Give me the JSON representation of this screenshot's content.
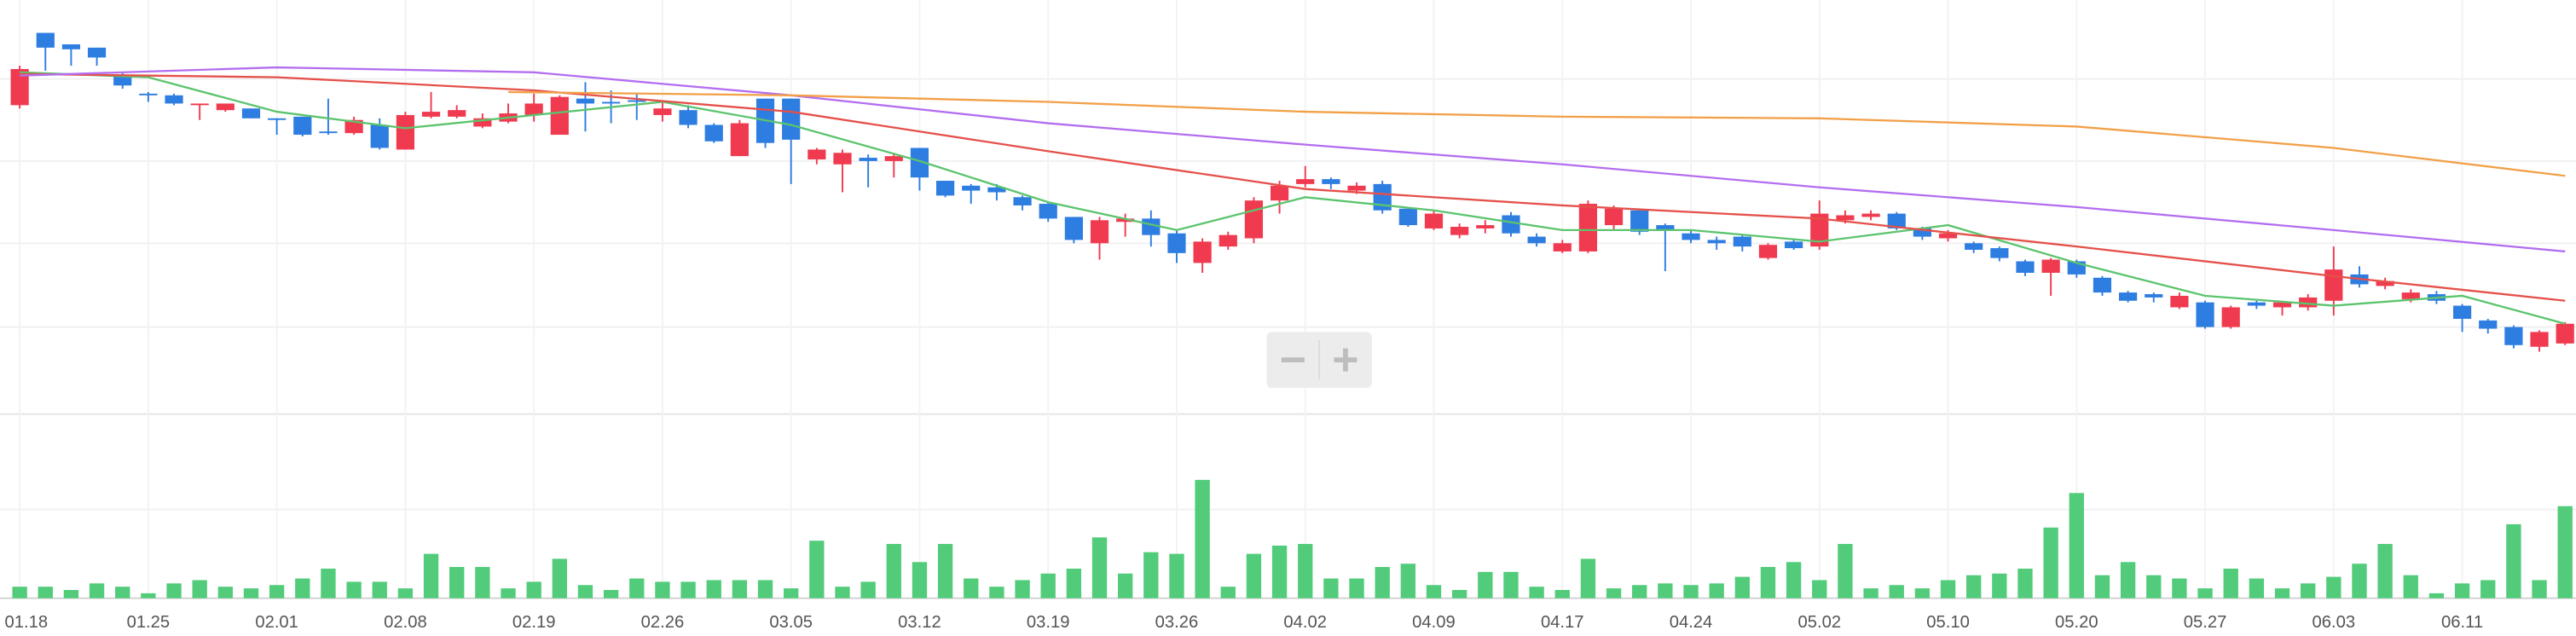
{
  "chart_data": {
    "type": "candlestick",
    "categories": [
      "01.18",
      null,
      null,
      null,
      null,
      "01.25",
      null,
      null,
      null,
      null,
      "02.01",
      null,
      null,
      null,
      null,
      "02.08",
      null,
      null,
      null,
      null,
      "02.19",
      null,
      null,
      null,
      null,
      "02.26",
      null,
      null,
      null,
      null,
      "03.05",
      null,
      null,
      null,
      null,
      "03.12",
      null,
      null,
      null,
      null,
      "03.19",
      null,
      null,
      null,
      null,
      "03.26",
      null,
      null,
      null,
      null,
      "04.02",
      null,
      null,
      null,
      null,
      "04.09",
      null,
      null,
      null,
      null,
      "04.17",
      null,
      null,
      null,
      null,
      "04.24",
      null,
      null,
      null,
      null,
      "05.02",
      null,
      null,
      null,
      null,
      "05.10",
      null,
      null,
      null,
      null,
      "05.20",
      null,
      null,
      null,
      null,
      "05.27",
      null,
      null,
      null,
      null,
      "06.03",
      null,
      null,
      null,
      null,
      "06.11",
      null,
      null,
      null,
      null
    ],
    "open": [
      236,
      280,
      273,
      271,
      254,
      243,
      242,
      236,
      233,
      234,
      228,
      229,
      220,
      219,
      224,
      209,
      229,
      229,
      223,
      226,
      230,
      218,
      240,
      238,
      239,
      230,
      233,
      224,
      205,
      240,
      240,
      203,
      200,
      204,
      202,
      210,
      190,
      187,
      186,
      180,
      176,
      168,
      152,
      165,
      167,
      158,
      140,
      150,
      155,
      178,
      188,
      191,
      184,
      188,
      173,
      161,
      157,
      161,
      169,
      156,
      147,
      147,
      163,
      172,
      163,
      158,
      154,
      156,
      143,
      153,
      150,
      166,
      168,
      170,
      161,
      155,
      152,
      149,
      141,
      134,
      141,
      131,
      122,
      121,
      113,
      116,
      101,
      116,
      113,
      113,
      117,
      133,
      126,
      118,
      121,
      114,
      105,
      101,
      89,
      91
    ],
    "close": [
      258,
      271,
      270,
      265,
      248,
      242,
      237,
      237,
      237,
      228,
      227,
      218,
      219,
      227,
      210,
      230,
      232,
      233,
      228,
      231,
      237,
      241,
      237,
      237,
      238,
      234,
      224,
      214,
      225,
      213,
      215,
      209,
      207,
      202,
      205,
      192,
      181,
      184,
      183,
      175,
      167,
      154,
      166,
      167,
      157,
      146,
      153,
      157,
      178,
      187,
      191,
      188,
      187,
      172,
      163,
      170,
      162,
      163,
      158,
      152,
      152,
      176,
      173,
      159,
      160,
      154,
      152,
      150,
      151,
      149,
      170,
      169,
      170,
      161,
      156,
      158,
      148,
      143,
      134,
      142,
      133,
      122,
      117,
      119,
      120,
      101,
      113,
      114,
      116,
      119,
      136,
      127,
      129,
      122,
      117,
      106,
      100,
      90,
      98,
      103
    ],
    "high": [
      260,
      280,
      273,
      271,
      256,
      244,
      243,
      237,
      237,
      234,
      228,
      229,
      240,
      229,
      228,
      232,
      244,
      236,
      231,
      237,
      243,
      242,
      250,
      245,
      243,
      238,
      236,
      225,
      227,
      240,
      240,
      210,
      209,
      206,
      207,
      210,
      190,
      188,
      188,
      181,
      177,
      168,
      168,
      170,
      172,
      160,
      155,
      159,
      180,
      190,
      199,
      192,
      189,
      190,
      174,
      172,
      164,
      166,
      171,
      158,
      154,
      178,
      175,
      173,
      164,
      160,
      156,
      157,
      152,
      155,
      178,
      172,
      172,
      171,
      162,
      160,
      153,
      150,
      142,
      143,
      142,
      132,
      123,
      122,
      122,
      117,
      114,
      117,
      117,
      121,
      150,
      138,
      131,
      124,
      123,
      115,
      106,
      102,
      99,
      104
    ],
    "low": [
      234,
      257,
      260,
      260,
      246,
      238,
      236,
      227,
      232,
      228,
      218,
      217,
      218,
      218,
      209,
      209,
      228,
      228,
      222,
      225,
      226,
      218,
      220,
      225,
      227,
      226,
      222,
      213,
      205,
      210,
      188,
      200,
      183,
      186,
      192,
      184,
      180,
      176,
      178,
      172,
      165,
      152,
      142,
      156,
      150,
      140,
      134,
      148,
      152,
      170,
      186,
      185,
      182,
      170,
      162,
      160,
      155,
      158,
      156,
      150,
      146,
      146,
      160,
      157,
      135,
      152,
      148,
      147,
      142,
      148,
      148,
      164,
      166,
      160,
      154,
      153,
      146,
      141,
      132,
      120,
      131,
      120,
      116,
      116,
      112,
      100,
      100,
      112,
      108,
      111,
      108,
      125,
      124,
      116,
      115,
      98,
      97,
      88,
      86,
      90
    ],
    "volume": [
      7,
      7,
      5,
      9,
      7,
      3,
      9,
      11,
      7,
      6,
      8,
      12,
      18,
      10,
      10,
      6,
      27,
      19,
      19,
      6,
      10,
      24,
      8,
      5,
      12,
      10,
      10,
      11,
      11,
      11,
      6,
      35,
      7,
      10,
      33,
      22,
      33,
      12,
      7,
      11,
      15,
      18,
      37,
      15,
      28,
      27,
      72,
      7,
      27,
      32,
      33,
      12,
      12,
      19,
      21,
      8,
      5,
      16,
      16,
      7,
      5,
      24,
      6,
      8,
      9,
      8,
      9,
      13,
      19,
      22,
      11,
      33,
      6,
      8,
      6,
      11,
      14,
      15,
      18,
      43,
      64,
      14,
      22,
      14,
      12,
      6,
      18,
      12,
      6,
      9,
      13,
      21,
      33,
      14,
      3,
      9,
      11,
      45,
      11,
      56
    ],
    "up_color": "#f03a4f",
    "down_color": "#2e7de1",
    "volume_color": "#52cc7a",
    "ylim": [
      45,
      300
    ],
    "volume_ylim": [
      0,
      75
    ],
    "grid": true,
    "lines": [
      {
        "color": "#5cc46e",
        "x": [
          0,
          5,
          10,
          15,
          20,
          25,
          30,
          35,
          40,
          45,
          50,
          55,
          60,
          65,
          70,
          75,
          80,
          85,
          90,
          95,
          99
        ],
        "values": [
          256,
          253,
          232,
          222,
          230,
          238,
          224,
          202,
          177,
          160,
          180,
          172,
          160,
          160,
          153,
          163,
          140,
          120,
          114,
          120,
          103
        ]
      },
      {
        "color": "#e5504a",
        "x": [
          0,
          10,
          20,
          30,
          40,
          50,
          60,
          70,
          80,
          90,
          99
        ],
        "values": [
          255,
          253,
          245,
          232,
          208,
          185,
          175,
          167,
          150,
          132,
          117
        ]
      },
      {
        "color": "#b36ef0",
        "x": [
          0,
          10,
          20,
          30,
          40,
          50,
          60,
          70,
          80,
          90,
          99
        ],
        "values": [
          254,
          259,
          256,
          242,
          225,
          212,
          200,
          186,
          174,
          160,
          147
        ]
      },
      {
        "color": "#f2a048",
        "x": [
          19,
          30,
          40,
          50,
          60,
          70,
          80,
          90,
          99
        ],
        "values": [
          244,
          242,
          238,
          232,
          229,
          228,
          223,
          210,
          193
        ]
      }
    ]
  }
}
